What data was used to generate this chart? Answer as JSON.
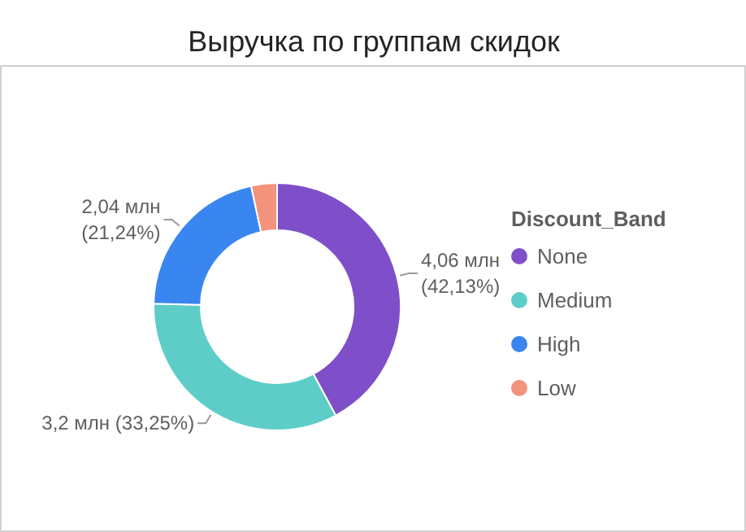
{
  "chart_data": {
    "type": "donut",
    "title": "Выручка по группам скидок",
    "legend_title": "Discount_Band",
    "legend": "right",
    "categories": [
      "None",
      "Medium",
      "High",
      "Low"
    ],
    "values": [
      42.13,
      33.25,
      21.24,
      3.38
    ],
    "colors": [
      "#7f4fc9",
      "#5ecdc8",
      "#3a86f0",
      "#f4937c"
    ],
    "value_labels": [
      "4,06 млн\n(42,13%)",
      "3,2 млн (33,25%)",
      "2,04 млн\n(21,24%)",
      null
    ]
  }
}
